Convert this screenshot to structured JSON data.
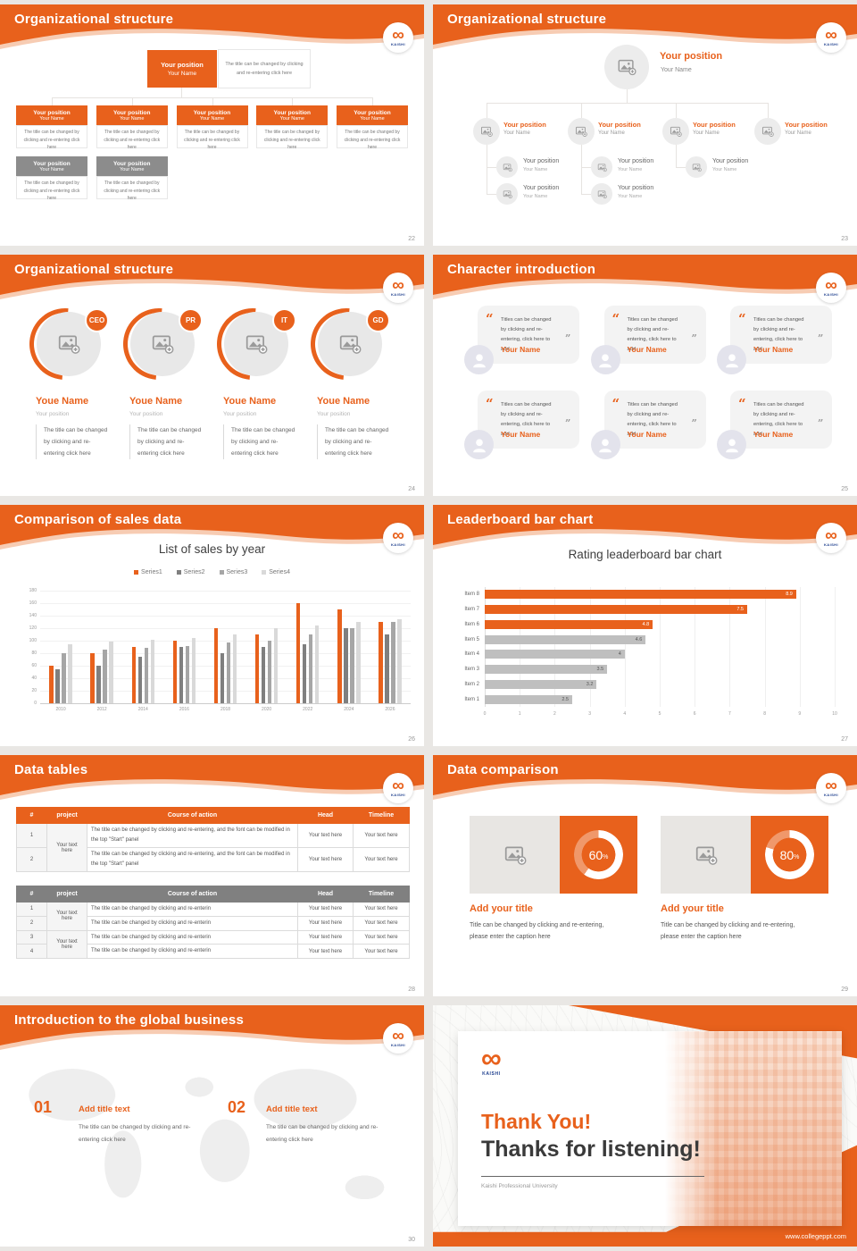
{
  "common": {
    "brand": "KAISHI",
    "accent": "#E8611C"
  },
  "slides": {
    "s22": {
      "title": "Organizational structure",
      "page": "22",
      "root": {
        "position": "Your position",
        "name": "Your Name"
      },
      "note": "The title can be changed by clicking and re-entering click here",
      "caption": "The title can be changed by clicking and re-entering click here",
      "level1": [
        {
          "position": "Your position",
          "name": "Your Name",
          "color": "orange"
        },
        {
          "position": "Your position",
          "name": "Your Name",
          "color": "orange"
        },
        {
          "position": "Your position",
          "name": "Your Name",
          "color": "orange"
        },
        {
          "position": "Your position",
          "name": "Your Name",
          "color": "orange"
        },
        {
          "position": "Your position",
          "name": "Your Name",
          "color": "orange"
        }
      ],
      "level2": [
        {
          "position": "Your position",
          "name": "Your Name",
          "color": "gray"
        },
        {
          "position": "Your position",
          "name": "Your Name",
          "color": "gray"
        }
      ]
    },
    "s23": {
      "title": "Organizational structure",
      "page": "23",
      "root": {
        "position": "Your position",
        "name": "Your Name"
      },
      "level2": [
        {
          "position": "Your position",
          "name": "Your Name"
        },
        {
          "position": "Your position",
          "name": "Your Name"
        },
        {
          "position": "Your position",
          "name": "Your Name"
        },
        {
          "position": "Your position",
          "name": "Your Name"
        }
      ],
      "level3": [
        [
          {
            "position": "Your position",
            "name": "Your Name"
          },
          {
            "position": "Your position",
            "name": "Your Name"
          },
          {
            "position": "Your position",
            "name": "Your Name"
          }
        ],
        [
          {
            "position": "Your position",
            "name": "Your Name"
          },
          {
            "position": "Your position",
            "name": "Your Name"
          }
        ]
      ]
    },
    "s24": {
      "title": "Organizational structure",
      "page": "24",
      "cards": [
        {
          "badge": "CEO",
          "name": "Youe Name",
          "position": "Your position",
          "text": "The title can be changed by clicking and re-entering click here"
        },
        {
          "badge": "PR",
          "name": "Youe Name",
          "position": "Your position",
          "text": "The title can be changed by clicking and re-entering click here"
        },
        {
          "badge": "IT",
          "name": "Youe Name",
          "position": "Your position",
          "text": "The title can be changed by clicking and re-entering click here"
        },
        {
          "badge": "GD",
          "name": "Youe Name",
          "position": "Your position",
          "text": "The title can be changed by clicking and re-entering click here"
        }
      ]
    },
    "s25": {
      "title": "Character introduction",
      "page": "25",
      "cards": [
        {
          "quote": "Titles can be changed by clicking and re-entering, click here to add",
          "name": "Your Name"
        },
        {
          "quote": "Titles can be changed by clicking and re-entering, click here to add",
          "name": "Your Name"
        },
        {
          "quote": "Titles can be changed by clicking and re-entering, click here to add",
          "name": "Your Name"
        },
        {
          "quote": "Titles can be changed by clicking and re-entering, click here to add",
          "name": "Your Name"
        },
        {
          "quote": "Titles can be changed by clicking and re-entering, click here to add",
          "name": "Your Name"
        },
        {
          "quote": "Titles can be changed by clicking and re-entering, click here to add",
          "name": "Your Name"
        }
      ]
    },
    "s26": {
      "title": "Comparison of sales data",
      "page": "26"
    },
    "s27": {
      "title": "Leaderboard bar chart",
      "page": "27"
    },
    "s28": {
      "title": "Data tables",
      "page": "28",
      "headers": [
        "#",
        "project",
        "Course of action",
        "Head",
        "Timeline"
      ],
      "table1": {
        "project": "Your text here",
        "rows": [
          {
            "num": "1",
            "course": "The title can be changed by clicking and re-entering, and the font can be modified in the top \"Start\" panel",
            "head": "Your text here",
            "timeline": "Your text here"
          },
          {
            "num": "2",
            "course": "The title can be changed by clicking and re-entering, and the font can be modified in the top \"Start\" panel",
            "head": "Your text here",
            "timeline": "Your text here"
          }
        ]
      },
      "table2": {
        "project": "Your text here",
        "rows": [
          {
            "num": "1",
            "course": "The title can be changed by clicking and re-enterin",
            "head": "Your text here",
            "timeline": "Your text here"
          },
          {
            "num": "2",
            "course": "The title can be changed by clicking and re-enterin",
            "head": "Your text here",
            "timeline": "Your text here"
          },
          {
            "num": "3",
            "course": "The title can be changed by clicking and re-enterin",
            "head": "Your text here",
            "timeline": "Your text here"
          },
          {
            "num": "4",
            "course": "The title can be changed by clicking and re-enterin",
            "head": "Your text here",
            "timeline": "Your text here"
          }
        ]
      }
    },
    "s29": {
      "title": "Data comparison",
      "page": "29",
      "percent_suffix": "%",
      "panels": [
        {
          "percent": "60",
          "heading": "Add your title",
          "caption": "Title can be changed by clicking and re-entering, please enter the caption here"
        },
        {
          "percent": "80",
          "heading": "Add your title",
          "caption": "Title can be changed by clicking and re-entering, please enter the caption here"
        }
      ]
    },
    "s30": {
      "title": "Introduction to the global business",
      "page": "30",
      "items": [
        {
          "num": "01",
          "heading": "Add title text",
          "caption": "The title can be changed by clicking and re-entering click here"
        },
        {
          "num": "02",
          "heading": "Add title text",
          "caption": "The title can be changed by clicking and re-entering click here"
        }
      ]
    },
    "s31": {
      "heading1": "Thank You!",
      "heading2": "Thanks for listening!",
      "subtitle": "Kaishi Professional University",
      "url": "www.collegeppt.com"
    }
  },
  "chart_data": [
    {
      "type": "bar",
      "title": "List of sales by year",
      "categories": [
        "2010",
        "2012",
        "2014",
        "2016",
        "2018",
        "2020",
        "2022",
        "2024",
        "2026"
      ],
      "series": [
        {
          "name": "Series1",
          "color": "#E8611C",
          "values": [
            60,
            80,
            90,
            100,
            120,
            110,
            160,
            150,
            130
          ]
        },
        {
          "name": "Series2",
          "color": "#7F7F7F",
          "values": [
            55,
            60,
            75,
            90,
            80,
            90,
            95,
            120,
            110
          ]
        },
        {
          "name": "Series3",
          "color": "#A6A6A6",
          "values": [
            80,
            86,
            88,
            92,
            97,
            100,
            110,
            120,
            130
          ]
        },
        {
          "name": "Series4",
          "color": "#D9D9D9",
          "values": [
            95,
            98,
            102,
            105,
            110,
            120,
            125,
            130,
            135
          ]
        }
      ],
      "xlabel": "",
      "ylabel": "",
      "ylim": [
        0,
        180
      ],
      "ytick_step": 20,
      "grid": true,
      "legend_position": "top"
    },
    {
      "type": "bar",
      "orientation": "horizontal",
      "title": "Rating leaderboard bar chart",
      "categories": [
        "Item 8",
        "Item 7",
        "Item 6",
        "Item 5",
        "Item 4",
        "Item 3",
        "Item 2",
        "Item 1"
      ],
      "values": [
        8.9,
        7.5,
        4.8,
        4.6,
        4,
        3.5,
        3.2,
        2.5
      ],
      "bar_colors": [
        "#E8611C",
        "#E8611C",
        "#E8611C",
        "#BFBFBF",
        "#BFBFBF",
        "#BFBFBF",
        "#BFBFBF",
        "#BFBFBF"
      ],
      "xlim": [
        0,
        10
      ],
      "xticks": [
        0,
        1,
        2,
        3,
        4,
        5,
        6,
        7,
        8,
        9,
        10
      ],
      "grid": true,
      "legend_position": "none"
    }
  ]
}
